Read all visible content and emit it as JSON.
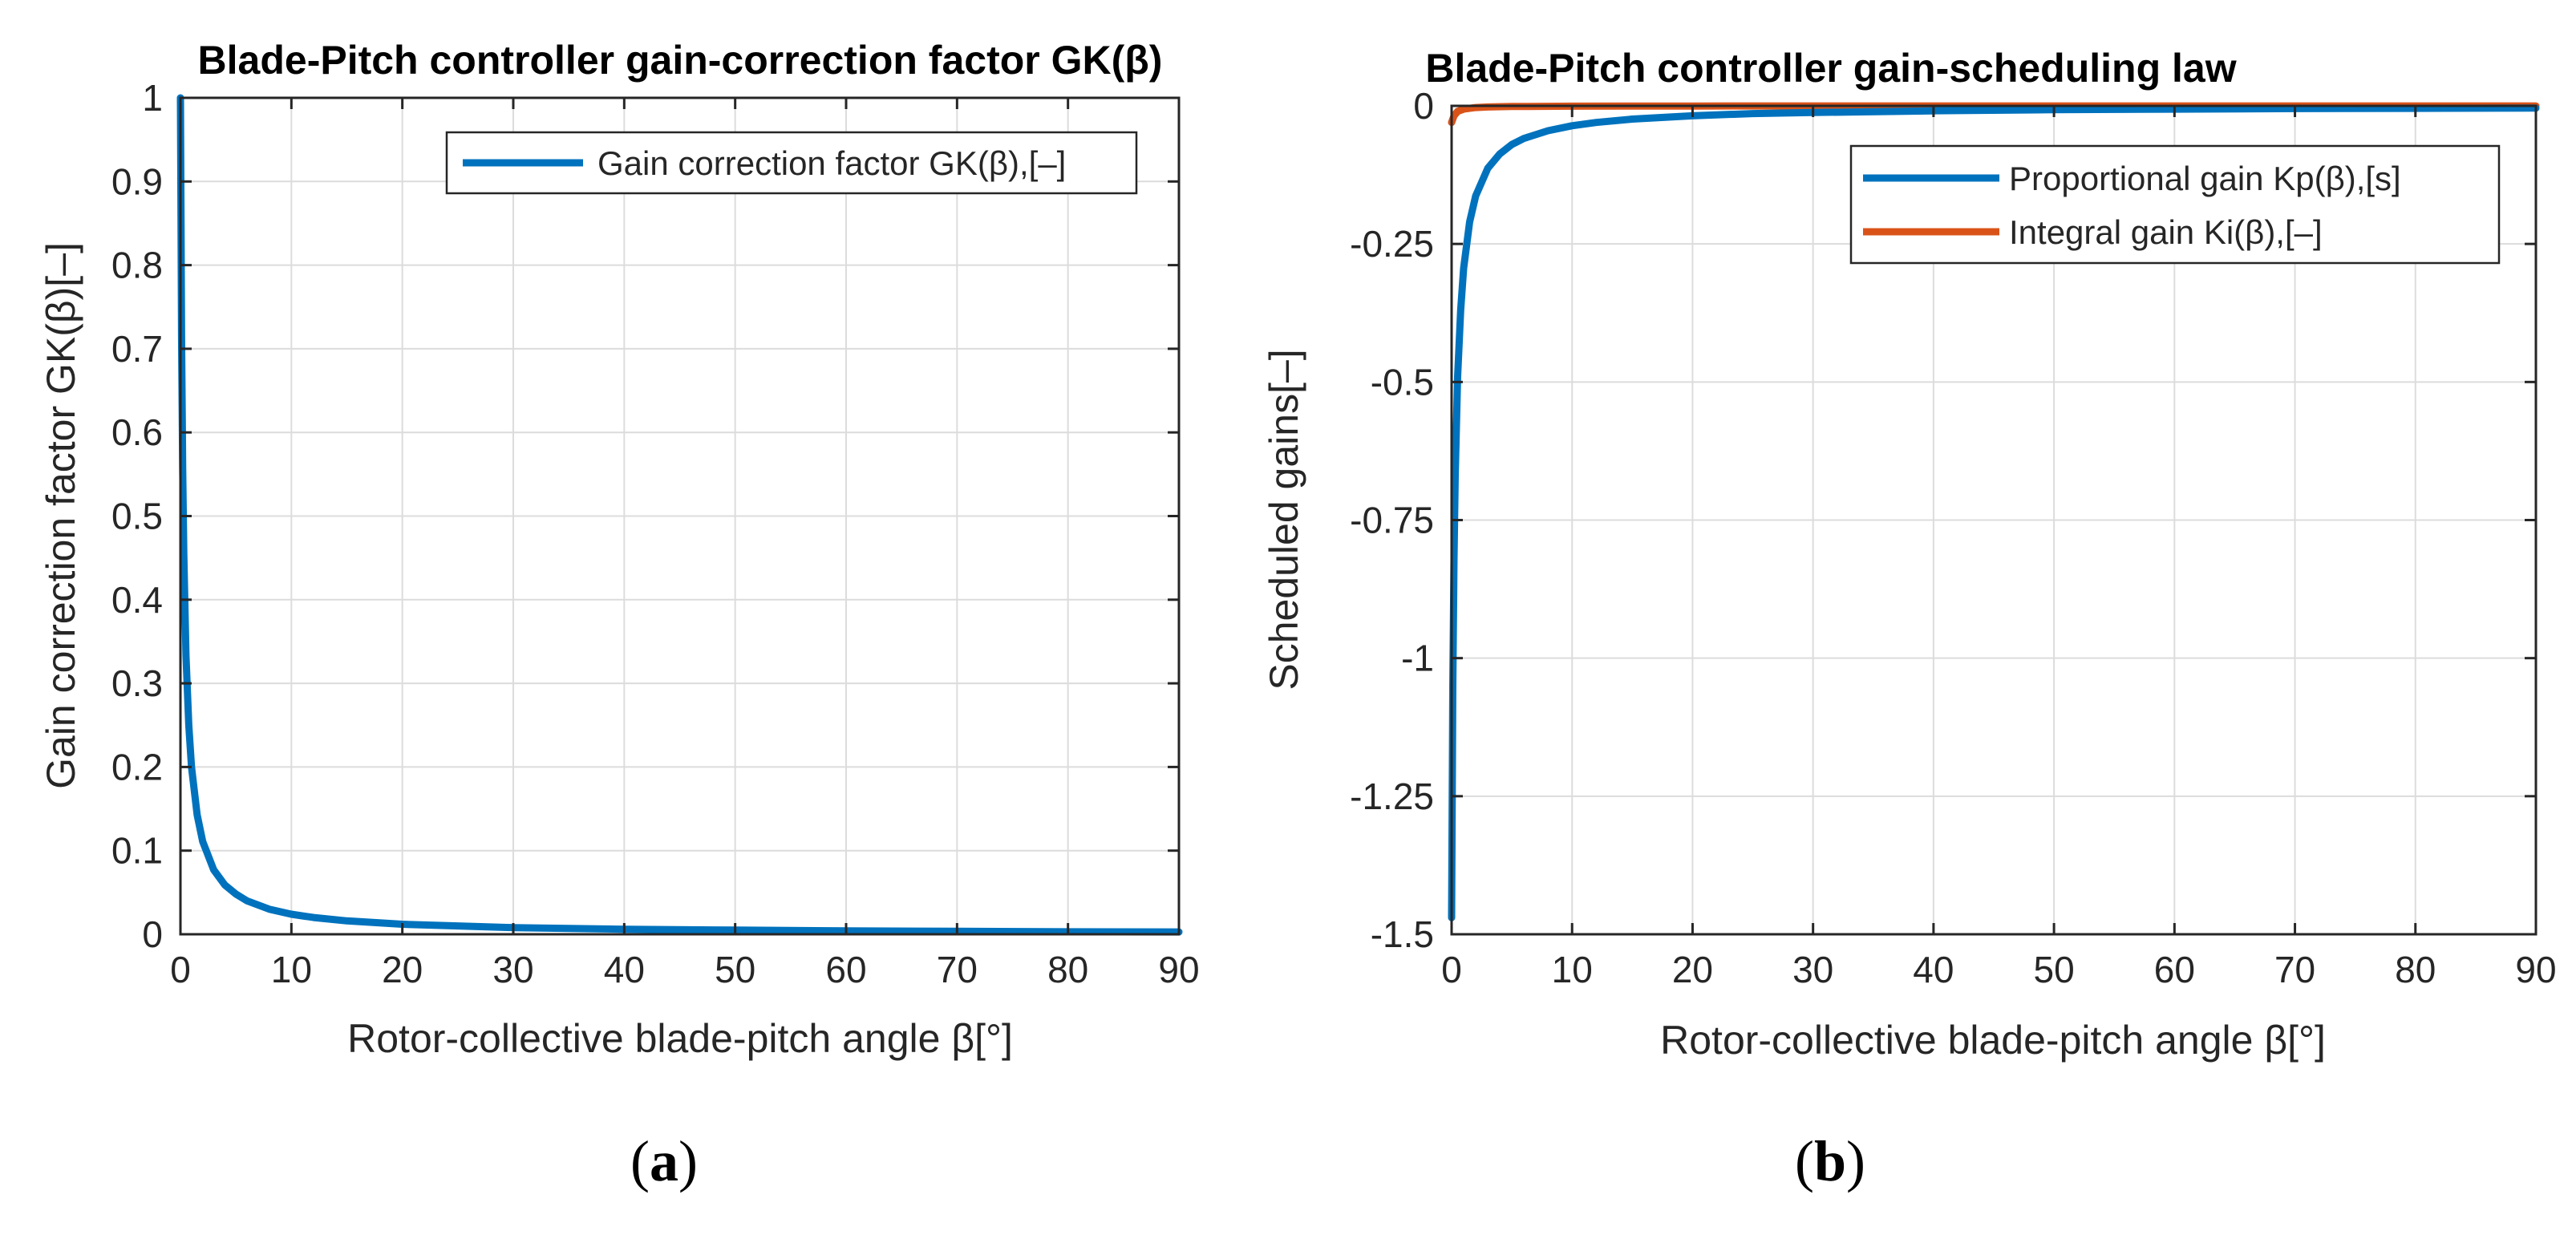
{
  "chart_data": [
    {
      "id": "a",
      "type": "line",
      "title": "Blade-Pitch controller gain-correction factor GK(β)",
      "xlabel": "Rotor-collective blade-pitch angle β[°]",
      "ylabel": "Gain correction factor GK(β)[–]",
      "xlim": [
        0,
        90
      ],
      "ylim": [
        0,
        1
      ],
      "xticks": [
        "0",
        "10",
        "20",
        "30",
        "40",
        "50",
        "60",
        "70",
        "80",
        "90"
      ],
      "yticks": [
        "0",
        "0.1",
        "0.2",
        "0.3",
        "0.4",
        "0.5",
        "0.6",
        "0.7",
        "0.8",
        "0.9",
        "1"
      ],
      "grid": true,
      "legend_position": "top-right",
      "caption": "(a)",
      "series": [
        {
          "name": "Gain correction factor GK(β),[–]",
          "color": "#0072BD",
          "x": [
            0,
            0.1,
            0.2,
            0.3,
            0.5,
            0.75,
            1,
            1.5,
            2,
            3,
            4,
            5,
            6,
            8,
            10,
            12,
            15,
            20,
            25,
            30,
            40,
            50,
            60,
            70,
            80,
            90
          ],
          "y": [
            1.0,
            0.714,
            0.556,
            0.455,
            0.333,
            0.25,
            0.2,
            0.143,
            0.111,
            0.077,
            0.059,
            0.048,
            0.04,
            0.03,
            0.024,
            0.02,
            0.016,
            0.012,
            0.01,
            0.008,
            0.006,
            0.005,
            0.004,
            0.0035,
            0.003,
            0.0028
          ]
        }
      ]
    },
    {
      "id": "b",
      "type": "line",
      "title": "Blade-Pitch controller gain-scheduling law",
      "xlabel": "Rotor-collective blade-pitch angle β[°]",
      "ylabel": "Scheduled gains[–]",
      "xlim": [
        0,
        90
      ],
      "ylim": [
        -1.5,
        0
      ],
      "xticks": [
        "0",
        "10",
        "20",
        "30",
        "40",
        "50",
        "60",
        "70",
        "80",
        "90"
      ],
      "yticks": [
        "-1.5",
        "-1.25",
        "-1",
        "-0.75",
        "-0.5",
        "-0.25",
        "0"
      ],
      "grid": true,
      "legend_position": "top-right",
      "caption": "(b)",
      "series": [
        {
          "name": "Proportional gain Kp(β),[s]",
          "color": "#0072BD",
          "x": [
            0,
            0.1,
            0.2,
            0.3,
            0.5,
            0.75,
            1,
            1.5,
            2,
            3,
            4,
            5,
            6,
            8,
            10,
            12,
            15,
            20,
            25,
            30,
            40,
            50,
            60,
            70,
            80,
            90
          ],
          "y": [
            -1.47,
            -1.05,
            -0.82,
            -0.67,
            -0.49,
            -0.37,
            -0.294,
            -0.21,
            -0.163,
            -0.113,
            -0.087,
            -0.07,
            -0.059,
            -0.045,
            -0.036,
            -0.03,
            -0.024,
            -0.018,
            -0.014,
            -0.012,
            -0.009,
            -0.007,
            -0.006,
            -0.005,
            -0.0045,
            -0.004
          ]
        },
        {
          "name": "Integral gain Ki(β),[–]",
          "color": "#D95319",
          "x": [
            0,
            0.2,
            0.5,
            1,
            2,
            3,
            5,
            10,
            20,
            30,
            40,
            50,
            60,
            70,
            80,
            90
          ],
          "y": [
            -0.03,
            -0.018,
            -0.01,
            -0.006,
            -0.003,
            -0.002,
            -0.0012,
            -0.0006,
            -0.0003,
            -0.0002,
            -0.00015,
            -0.00012,
            -0.0001,
            -0.0001,
            -0.0001,
            -0.0001
          ]
        }
      ]
    }
  ]
}
